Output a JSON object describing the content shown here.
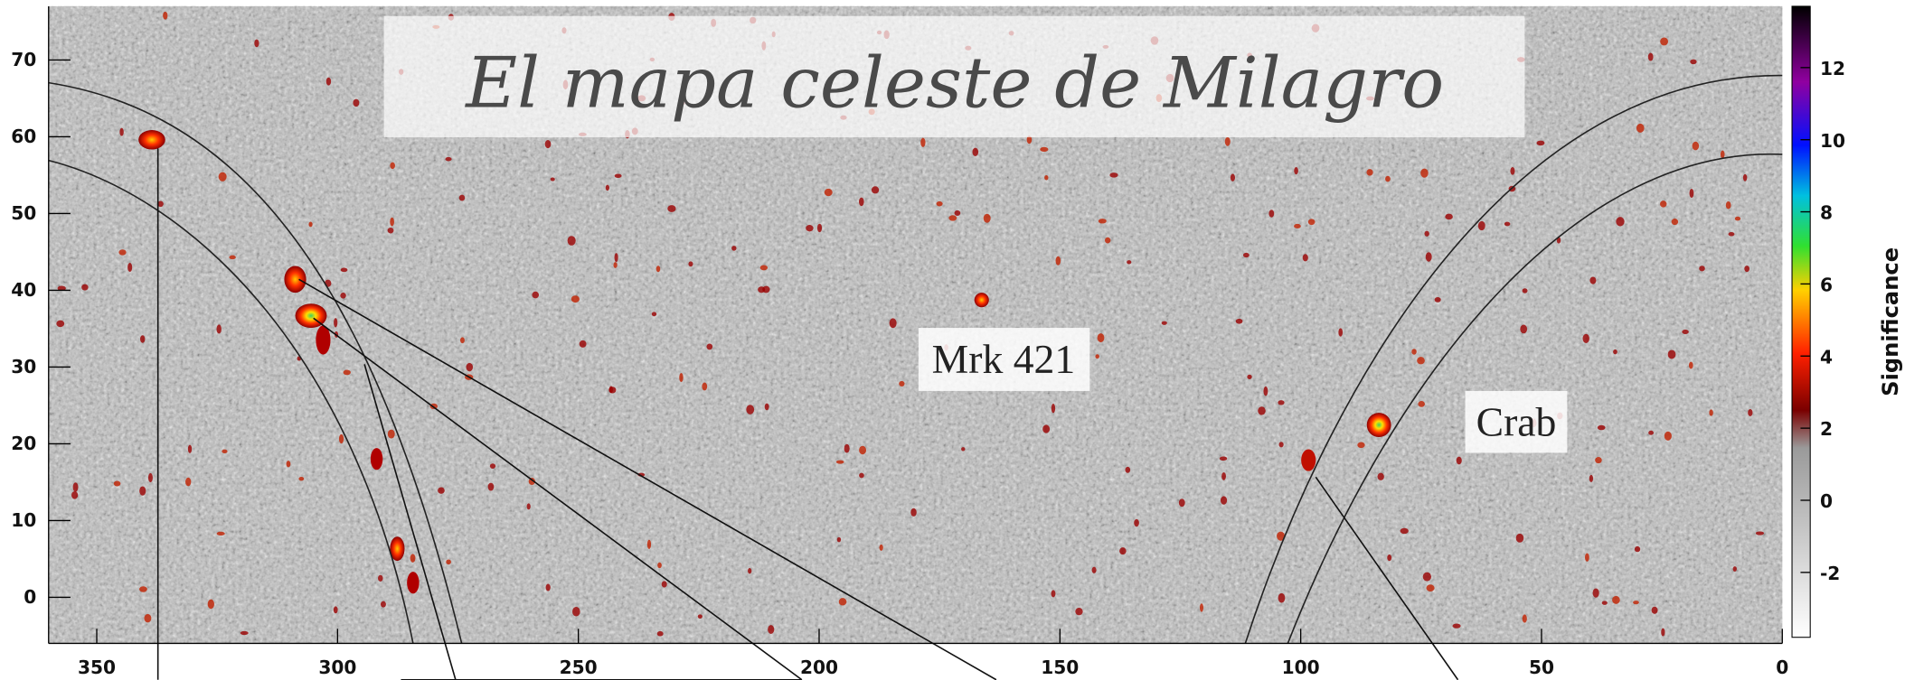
{
  "title": "El mapa celeste de Milagro",
  "labels": [
    "Mrk 421",
    "Crab"
  ],
  "axes": {
    "xlim": [
      360,
      0
    ],
    "xticks": [
      350,
      300,
      250,
      200,
      150,
      100,
      50,
      0
    ],
    "ylim": [
      -6,
      77
    ],
    "yticks": [
      70,
      60,
      50,
      40,
      30,
      20,
      10,
      0
    ]
  },
  "colorbar": {
    "label": "Significance",
    "lim": [
      -3.8,
      13.7
    ],
    "ticks": [
      12,
      10,
      8,
      6,
      4,
      2,
      0,
      -2
    ]
  }
}
